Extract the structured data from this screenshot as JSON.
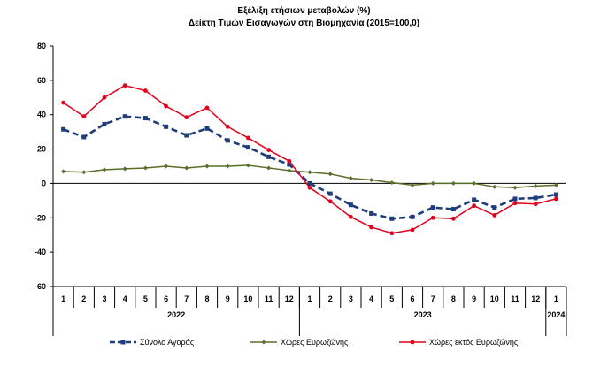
{
  "chart_data": {
    "type": "line",
    "title": "Εξέλιξη ετήσιων μεταβολών (%)",
    "subtitle": "Δείκτη Τιμών Εισαγωγών στη Βιομηχανία (2015=100,0)",
    "x": [
      "1",
      "2",
      "3",
      "4",
      "5",
      "6",
      "7",
      "8",
      "9",
      "10",
      "11",
      "12",
      "1",
      "2",
      "3",
      "4",
      "5",
      "6",
      "7",
      "8",
      "9",
      "10",
      "11",
      "12",
      "1"
    ],
    "year_labels": [
      {
        "label": "2022",
        "start": 0,
        "end": 11
      },
      {
        "label": "2023",
        "start": 12,
        "end": 23
      },
      {
        "label": "2024",
        "start": 24,
        "end": 24
      }
    ],
    "ylim": [
      -60,
      80
    ],
    "yticks": [
      -60,
      -40,
      -20,
      0,
      20,
      40,
      60,
      80
    ],
    "grid": false,
    "legend_position": "bottom",
    "series": [
      {
        "name": "Σύνολο Αγοράς",
        "color": "#1f3d7a",
        "style": "dashed",
        "marker": "square",
        "values": [
          31.5,
          27.0,
          34.5,
          39.0,
          38.0,
          33.0,
          28.0,
          32.0,
          25.0,
          21.0,
          15.5,
          11.0,
          0.0,
          -6.0,
          -12.5,
          -17.5,
          -20.5,
          -19.5,
          -14.0,
          -15.0,
          -9.5,
          -14.0,
          -9.0,
          -8.5,
          -6.5
        ]
      },
      {
        "name": "Χώρες Ευρωζώνης",
        "color": "#5a6e2a",
        "style": "solid",
        "marker": "diamond",
        "values": [
          7.0,
          6.5,
          8.0,
          8.5,
          9.0,
          10.0,
          9.0,
          10.0,
          10.0,
          10.5,
          9.0,
          7.5,
          6.5,
          5.5,
          3.0,
          2.0,
          0.5,
          -1.0,
          0.0,
          0.0,
          0.0,
          -2.0,
          -2.5,
          -1.5,
          -1.0
        ]
      },
      {
        "name": "Χώρες εκτός Ευρωζώνης",
        "color": "#e3001b",
        "style": "solid",
        "marker": "circle",
        "values": [
          47.0,
          39.0,
          50.0,
          57.0,
          54.0,
          45.0,
          38.5,
          44.0,
          33.0,
          26.5,
          19.5,
          13.0,
          -2.5,
          -10.5,
          -19.5,
          -25.5,
          -29.0,
          -27.0,
          -20.0,
          -20.5,
          -13.0,
          -18.5,
          -11.5,
          -12.0,
          -9.0
        ]
      }
    ]
  }
}
